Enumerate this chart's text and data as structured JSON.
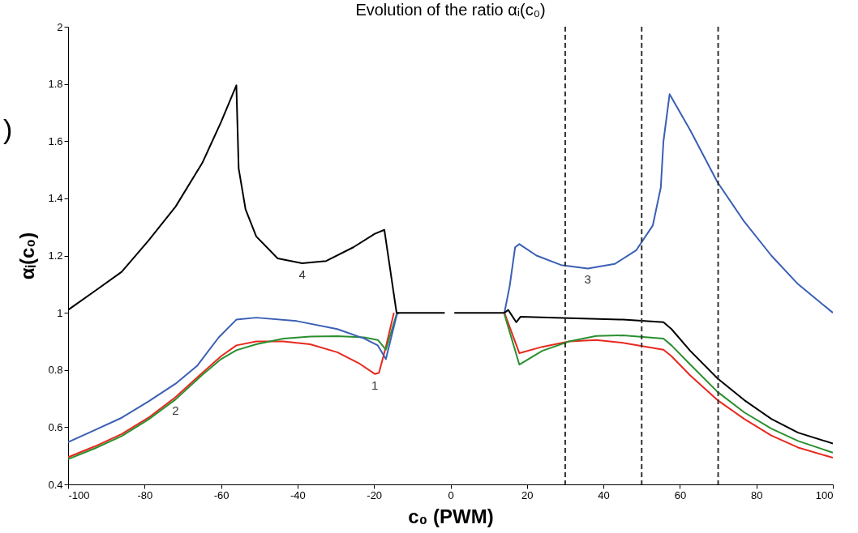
{
  "chart_data": {
    "type": "line",
    "title": "Evolution of the ratio αᵢ(c₀)",
    "xlabel": "c₀ (PWM)",
    "ylabel": "αᵢ(c₀)",
    "xlim": [
      -100,
      100
    ],
    "xticks": [
      -100,
      -80,
      -60,
      -40,
      -20,
      0,
      20,
      40,
      60,
      80,
      100
    ],
    "ylim": [
      0.4,
      2
    ],
    "yticks": [
      0.4,
      0.6,
      0.8,
      1,
      1.2,
      1.4,
      1.6,
      1.8,
      2
    ],
    "grid": false,
    "line_style": "solid",
    "marker": "none",
    "series": [
      {
        "color": "#e8281f",
        "x": [
          -100,
          -93,
          -86,
          -79,
          -71.9,
          -64.9,
          -60,
          -56,
          -50.8,
          -43.7,
          -36.7,
          -29.6,
          -24,
          -19.8,
          -18.7,
          -16.9,
          -14.8,
          0,
          14.1,
          18,
          24,
          31,
          38.1,
          45.1,
          55.7,
          57.8,
          62.7,
          69.8,
          76.8,
          83.9,
          90.9,
          100
        ],
        "values": [
          0.495,
          0.533,
          0.576,
          0.633,
          0.705,
          0.79,
          0.848,
          0.886,
          0.9,
          0.9,
          0.89,
          0.862,
          0.824,
          0.786,
          0.79,
          0.881,
          1.0,
          null,
          1.0,
          0.859,
          0.881,
          0.9,
          0.905,
          0.895,
          0.871,
          0.848,
          0.781,
          0.695,
          0.629,
          0.571,
          0.529,
          0.493
        ]
      },
      {
        "color": "#2a8f2f",
        "x": [
          -100,
          -93,
          -86,
          -79,
          -71.9,
          -64.9,
          -60,
          -56,
          -50.8,
          -43.7,
          -36.7,
          -29.6,
          -22.6,
          -19,
          -16.9,
          -14.1,
          -13.4,
          0,
          14.1,
          18,
          24,
          31,
          38.1,
          45.1,
          55.7,
          57.8,
          62.7,
          69.8,
          76.8,
          83.9,
          90.9,
          100
        ],
        "values": [
          0.488,
          0.526,
          0.569,
          0.627,
          0.697,
          0.783,
          0.838,
          0.869,
          0.89,
          0.91,
          0.917,
          0.918,
          0.914,
          0.905,
          0.871,
          0.995,
          1.0,
          null,
          0.995,
          0.819,
          0.867,
          0.9,
          0.919,
          0.921,
          0.91,
          0.886,
          0.819,
          0.724,
          0.652,
          0.595,
          0.552,
          0.511
        ]
      },
      {
        "color": "#3a5fb5",
        "x": [
          -100,
          -93,
          -86,
          -79,
          -71.9,
          -66.3,
          -60.6,
          -56,
          -50.8,
          -40.2,
          -29.6,
          -22.6,
          -19,
          -16.9,
          -14.1,
          -13.8,
          0,
          14.1,
          15.5,
          16.9,
          18,
          22.5,
          28.9,
          35.9,
          43,
          48.6,
          52.9,
          55,
          55.7,
          57.3,
          62.7,
          69.8,
          76.8,
          83.9,
          90.9,
          100
        ],
        "values": [
          0.548,
          0.59,
          0.633,
          0.69,
          0.752,
          0.814,
          0.914,
          0.976,
          0.983,
          0.971,
          0.943,
          0.91,
          0.886,
          0.838,
          0.99,
          1.0,
          null,
          1.0,
          1.095,
          1.229,
          1.24,
          1.2,
          1.167,
          1.155,
          1.171,
          1.219,
          1.305,
          1.438,
          1.6,
          1.764,
          1.638,
          1.457,
          1.319,
          1.2,
          1.1,
          1.0
        ]
      },
      {
        "color": "#000000",
        "x": [
          -100,
          -93,
          -86,
          -79,
          -71.9,
          -64.9,
          -60,
          -56,
          -55.4,
          -53.6,
          -50.8,
          -45.2,
          -38.8,
          -32.5,
          -25.4,
          -19.8,
          -17.3,
          -14.1,
          -1.5,
          0,
          1,
          14.1,
          15.1,
          17.2,
          18.3,
          31,
          45.1,
          55.7,
          57.8,
          62.7,
          69.8,
          76.8,
          83.9,
          90.9,
          100
        ],
        "values": [
          1.01,
          1.076,
          1.143,
          1.252,
          1.371,
          1.524,
          1.667,
          1.795,
          1.505,
          1.362,
          1.267,
          1.19,
          1.173,
          1.181,
          1.229,
          1.276,
          1.29,
          1.0,
          1.0,
          null,
          1.0,
          1.0,
          1.01,
          0.967,
          0.986,
          0.981,
          0.976,
          0.967,
          0.943,
          0.867,
          0.771,
          0.695,
          0.629,
          0.581,
          0.543
        ]
      }
    ],
    "ref_lines": [
      {
        "axis": "x",
        "value": 30,
        "color": "#333333",
        "line_style": "dashed"
      },
      {
        "axis": "x",
        "value": 50,
        "color": "#333333",
        "line_style": "dashed"
      },
      {
        "axis": "x",
        "value": 70,
        "color": "#333333",
        "line_style": "dashed"
      }
    ],
    "annotations": [
      {
        "text": "1",
        "x": -19.8,
        "y": 0.786
      },
      {
        "text": "2",
        "x": -71.9,
        "y": 0.697
      },
      {
        "text": "3",
        "x": 35.9,
        "y": 1.155
      },
      {
        "text": "4",
        "x": -38.8,
        "y": 1.173
      },
      ")"
    ]
  }
}
